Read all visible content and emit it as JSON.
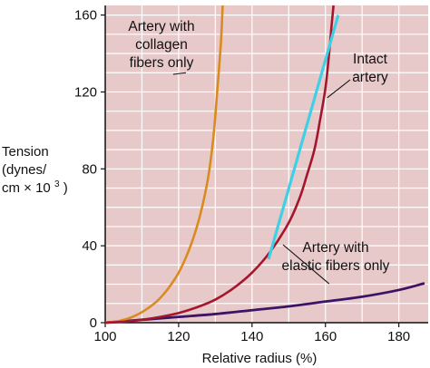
{
  "chart_data": {
    "type": "line",
    "title": "",
    "xlabel": "Relative radius (%)",
    "ylabel_lines": [
      "Tension",
      "(dynes/",
      "cm × 10",
      "3",
      ")"
    ],
    "xlim": [
      100,
      188
    ],
    "ylim": [
      0,
      165
    ],
    "x_ticks": [
      100,
      120,
      140,
      160,
      180
    ],
    "y_ticks": [
      0,
      40,
      80,
      120,
      160
    ],
    "grid": true,
    "colors": {
      "plot_background": "#e8c9c9",
      "grid": "#ffffff",
      "collagen": "#d98b1f",
      "intact": "#a3172e",
      "elastic": "#3b1466",
      "tangent": "#3fd0e6"
    },
    "series": [
      {
        "key": "collagen",
        "points": [
          [
            100,
            0
          ],
          [
            102,
            0.4
          ],
          [
            104,
            1
          ],
          [
            106,
            2
          ],
          [
            108,
            3.5
          ],
          [
            110,
            5.5
          ],
          [
            112,
            8
          ],
          [
            114,
            11
          ],
          [
            116,
            15
          ],
          [
            118,
            20
          ],
          [
            120,
            26
          ],
          [
            122,
            34
          ],
          [
            124,
            44
          ],
          [
            126,
            57
          ],
          [
            128,
            75
          ],
          [
            129.5,
            97
          ],
          [
            130.5,
            120
          ],
          [
            131.5,
            145
          ],
          [
            132,
            165
          ]
        ]
      },
      {
        "key": "intact",
        "points": [
          [
            100,
            0
          ],
          [
            105,
            0.5
          ],
          [
            110,
            1.5
          ],
          [
            115,
            3
          ],
          [
            120,
            5
          ],
          [
            125,
            8
          ],
          [
            130,
            12
          ],
          [
            135,
            18
          ],
          [
            140,
            26
          ],
          [
            145,
            37
          ],
          [
            150,
            52
          ],
          [
            153,
            65
          ],
          [
            155,
            77
          ],
          [
            157,
            90
          ],
          [
            158.5,
            105
          ],
          [
            160,
            122
          ],
          [
            161,
            140
          ],
          [
            161.7,
            155
          ],
          [
            162.2,
            165
          ]
        ]
      },
      {
        "key": "elastic",
        "points": [
          [
            100,
            0
          ],
          [
            110,
            1.5
          ],
          [
            120,
            3
          ],
          [
            130,
            4.5
          ],
          [
            140,
            6.5
          ],
          [
            150,
            8.5
          ],
          [
            160,
            11
          ],
          [
            170,
            13.5
          ],
          [
            180,
            17
          ],
          [
            187,
            20.5
          ]
        ]
      },
      {
        "key": "tangent",
        "points": [
          [
            144.5,
            33
          ],
          [
            163.5,
            160
          ]
        ]
      }
    ],
    "annotations": [
      {
        "key": "collagen",
        "lines": [
          "Artery with",
          "collagen",
          "fibers only"
        ],
        "anchor_x": 122,
        "anchor_y": 130
      },
      {
        "key": "intact",
        "lines": [
          "Intact",
          "artery"
        ],
        "anchor_x": 160.5,
        "anchor_y": 117
      },
      {
        "key": "elastic",
        "lines": [
          "Artery with",
          "elastic fibers only"
        ],
        "anchor_x": 161,
        "anchor_y": 24
      }
    ]
  }
}
